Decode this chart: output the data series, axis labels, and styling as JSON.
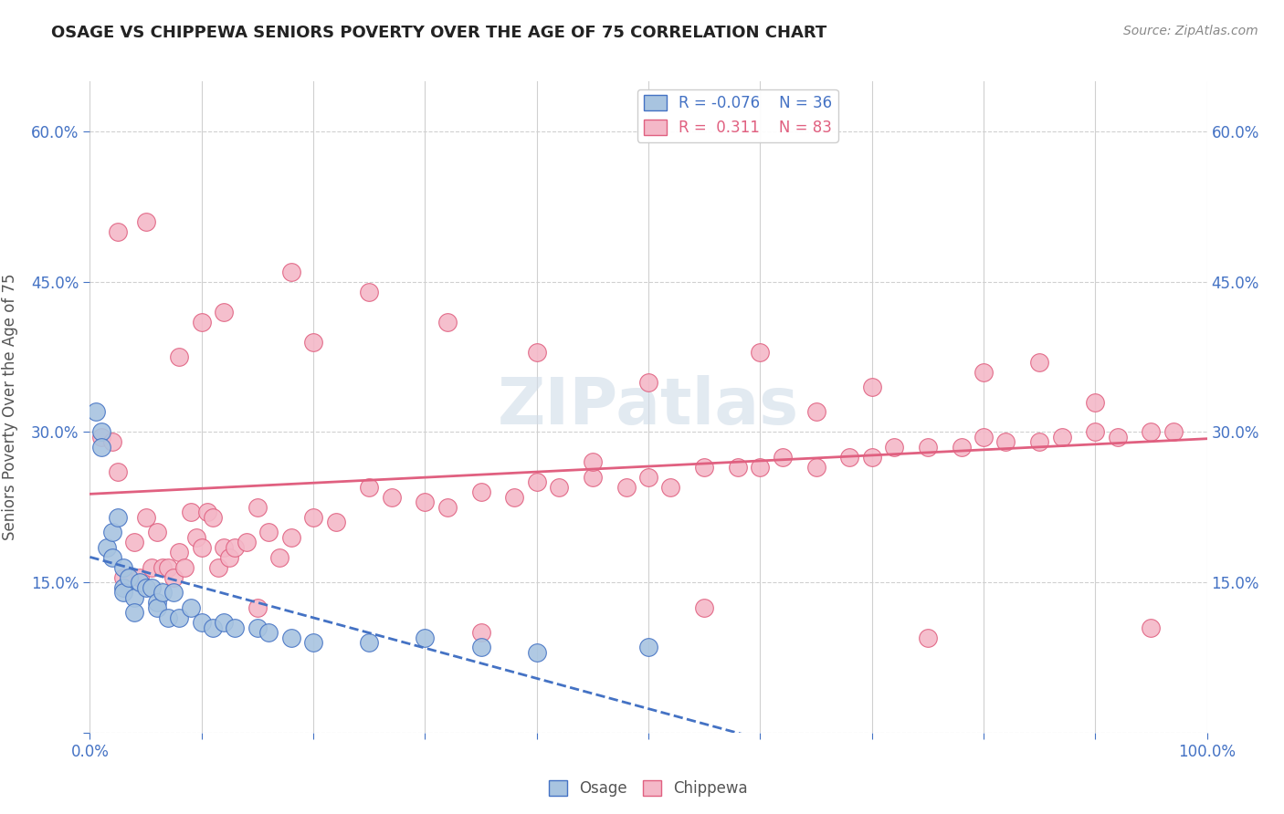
{
  "title": "OSAGE VS CHIPPEWA SENIORS POVERTY OVER THE AGE OF 75 CORRELATION CHART",
  "source": "Source: ZipAtlas.com",
  "ylabel": "Seniors Poverty Over the Age of 75",
  "xlim": [
    0.0,
    1.0
  ],
  "ylim": [
    0.0,
    0.65
  ],
  "xticks": [
    0.0,
    0.1,
    0.2,
    0.3,
    0.4,
    0.5,
    0.6,
    0.7,
    0.8,
    0.9,
    1.0
  ],
  "xticklabels": [
    "0.0%",
    "",
    "",
    "",
    "",
    "",
    "",
    "",
    "",
    "",
    "100.0%"
  ],
  "ytick_positions": [
    0.0,
    0.15,
    0.3,
    0.45,
    0.6
  ],
  "yticklabels": [
    "",
    "15.0%",
    "30.0%",
    "45.0%",
    "60.0%"
  ],
  "osage_color": "#a8c4e0",
  "chippewa_color": "#f4b8c8",
  "osage_line_color": "#4472c4",
  "chippewa_line_color": "#e06080",
  "osage_x": [
    0.005,
    0.01,
    0.01,
    0.015,
    0.02,
    0.02,
    0.025,
    0.03,
    0.03,
    0.03,
    0.035,
    0.04,
    0.04,
    0.045,
    0.05,
    0.055,
    0.06,
    0.06,
    0.065,
    0.07,
    0.075,
    0.08,
    0.09,
    0.1,
    0.11,
    0.12,
    0.13,
    0.15,
    0.16,
    0.18,
    0.2,
    0.25,
    0.3,
    0.35,
    0.4,
    0.5
  ],
  "osage_y": [
    0.32,
    0.3,
    0.285,
    0.185,
    0.175,
    0.2,
    0.215,
    0.165,
    0.145,
    0.14,
    0.155,
    0.135,
    0.12,
    0.15,
    0.145,
    0.145,
    0.13,
    0.125,
    0.14,
    0.115,
    0.14,
    0.115,
    0.125,
    0.11,
    0.105,
    0.11,
    0.105,
    0.105,
    0.1,
    0.095,
    0.09,
    0.09,
    0.095,
    0.085,
    0.08,
    0.085
  ],
  "chippewa_x": [
    0.01,
    0.02,
    0.025,
    0.03,
    0.04,
    0.045,
    0.05,
    0.055,
    0.06,
    0.065,
    0.07,
    0.075,
    0.08,
    0.085,
    0.09,
    0.095,
    0.1,
    0.105,
    0.11,
    0.115,
    0.12,
    0.125,
    0.13,
    0.14,
    0.15,
    0.16,
    0.17,
    0.18,
    0.2,
    0.22,
    0.25,
    0.27,
    0.3,
    0.32,
    0.35,
    0.38,
    0.4,
    0.42,
    0.45,
    0.48,
    0.5,
    0.52,
    0.55,
    0.58,
    0.6,
    0.62,
    0.65,
    0.68,
    0.7,
    0.72,
    0.75,
    0.78,
    0.8,
    0.82,
    0.85,
    0.87,
    0.9,
    0.92,
    0.95,
    0.97,
    0.025,
    0.05,
    0.08,
    0.12,
    0.18,
    0.25,
    0.32,
    0.4,
    0.5,
    0.6,
    0.7,
    0.8,
    0.9,
    0.15,
    0.35,
    0.55,
    0.75,
    0.95,
    0.1,
    0.45,
    0.65,
    0.85,
    0.2
  ],
  "chippewa_y": [
    0.295,
    0.29,
    0.26,
    0.155,
    0.19,
    0.155,
    0.215,
    0.165,
    0.2,
    0.165,
    0.165,
    0.155,
    0.18,
    0.165,
    0.22,
    0.195,
    0.185,
    0.22,
    0.215,
    0.165,
    0.185,
    0.175,
    0.185,
    0.19,
    0.225,
    0.2,
    0.175,
    0.195,
    0.215,
    0.21,
    0.245,
    0.235,
    0.23,
    0.225,
    0.24,
    0.235,
    0.25,
    0.245,
    0.255,
    0.245,
    0.255,
    0.245,
    0.265,
    0.265,
    0.265,
    0.275,
    0.265,
    0.275,
    0.275,
    0.285,
    0.285,
    0.285,
    0.295,
    0.29,
    0.29,
    0.295,
    0.3,
    0.295,
    0.3,
    0.3,
    0.5,
    0.51,
    0.375,
    0.42,
    0.46,
    0.44,
    0.41,
    0.38,
    0.35,
    0.38,
    0.345,
    0.36,
    0.33,
    0.125,
    0.1,
    0.125,
    0.095,
    0.105,
    0.41,
    0.27,
    0.32,
    0.37,
    0.39
  ],
  "background_color": "#ffffff",
  "plot_bg_color": "#ffffff",
  "grid_color": "#d0d0d0",
  "watermark_text": "ZIPatlas",
  "watermark_color": "#d0dce8",
  "watermark_alpha": 0.6
}
